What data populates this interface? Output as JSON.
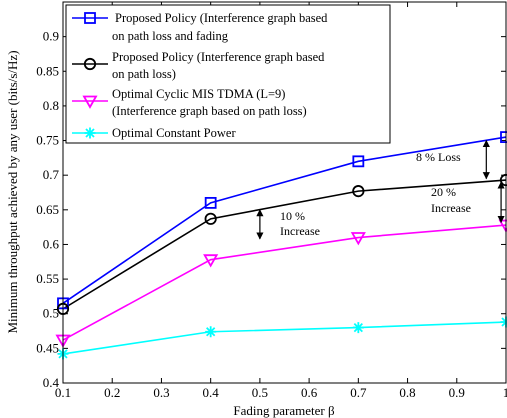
{
  "chart_data": {
    "type": "line",
    "xlabel": "Fading parameter β",
    "ylabel": "Minimum throughput achieved by any user (bits/s/Hz)",
    "xlim": [
      0.1,
      1.0
    ],
    "ylim": [
      0.4,
      0.95
    ],
    "xticks": [
      "0.1",
      "0.2",
      "0.3",
      "0.4",
      "0.5",
      "0.6",
      "0.7",
      "0.8",
      "0.9",
      "1"
    ],
    "yticks": [
      "0.4",
      "0.45",
      "0.5",
      "0.55",
      "0.6",
      "0.65",
      "0.7",
      "0.75",
      "0.8",
      "0.85",
      "0.9"
    ],
    "grid": false,
    "legend_position": "top-left",
    "x": [
      0.1,
      0.4,
      0.7,
      1.0
    ],
    "series": [
      {
        "name_line1": "Proposed Policy (Interference graph based",
        "name_line2": "on path loss and fading",
        "color": "#0000ff",
        "marker": "square",
        "values": [
          0.515,
          0.66,
          0.72,
          0.755
        ]
      },
      {
        "name_line1": "Proposed Policy (Interference graph based",
        "name_line2": "on path loss)",
        "color": "#000000",
        "marker": "circle",
        "values": [
          0.507,
          0.637,
          0.677,
          0.693
        ]
      },
      {
        "name_line1": "Optimal Cyclic MIS TDMA (L=9)",
        "name_line2": "(Interference graph based on path loss)",
        "color": "#ff00ff",
        "marker": "triangle-down",
        "values": [
          0.462,
          0.578,
          0.61,
          0.628
        ]
      },
      {
        "name_line1": "Optimal Constant Power",
        "name_line2": "",
        "color": "#00ffff",
        "marker": "star",
        "values": [
          0.442,
          0.474,
          0.48,
          0.488
        ]
      }
    ],
    "annotations": [
      {
        "line1": "10 %",
        "line2": "Increase",
        "x": 0.5,
        "y_from": 0.65,
        "y_to": 0.608
      },
      {
        "line1": "8 % Loss",
        "line2": "",
        "x": 0.96,
        "y_from": 0.75,
        "y_to": 0.695
      },
      {
        "line1": "20 %",
        "line2": "Increase",
        "x": 0.99,
        "y_from": 0.69,
        "y_to": 0.632
      }
    ]
  }
}
